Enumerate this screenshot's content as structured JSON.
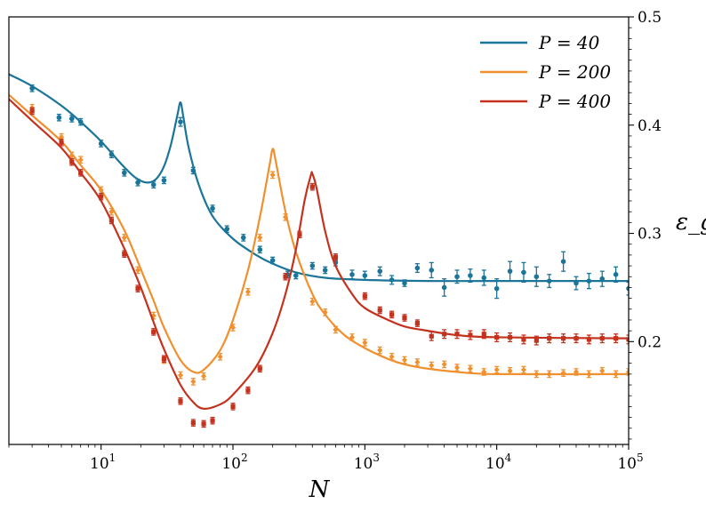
{
  "chart_data": {
    "type": "line",
    "xscale": "log",
    "xlim": [
      2,
      100000
    ],
    "ylim": [
      0.105,
      0.5
    ],
    "xlabel": "N",
    "ylabel": "ε_g",
    "yaxis_side": "right",
    "legend_position": "top-right",
    "x_ticks": [
      {
        "value": 10,
        "base": "10",
        "exp": "1"
      },
      {
        "value": 100,
        "base": "10",
        "exp": "2"
      },
      {
        "value": 1000,
        "base": "10",
        "exp": "3"
      },
      {
        "value": 10000,
        "base": "10",
        "exp": "4"
      },
      {
        "value": 100000,
        "base": "10",
        "exp": "5"
      }
    ],
    "y_ticks": [
      {
        "value": 0.2,
        "label": "0.2"
      },
      {
        "value": 0.3,
        "label": "0.3"
      },
      {
        "value": 0.4,
        "label": "0.4"
      },
      {
        "value": 0.5,
        "label": "0.5"
      }
    ],
    "series": [
      {
        "name": "P = 40",
        "color": "#1a7599",
        "marker": "circle",
        "curve": [
          [
            2,
            0.447
          ],
          [
            3,
            0.436
          ],
          [
            5,
            0.418
          ],
          [
            7,
            0.403
          ],
          [
            10,
            0.385
          ],
          [
            14,
            0.365
          ],
          [
            18,
            0.352
          ],
          [
            22,
            0.347
          ],
          [
            26,
            0.35
          ],
          [
            30,
            0.362
          ],
          [
            34,
            0.383
          ],
          [
            38,
            0.41
          ],
          [
            40,
            0.421
          ],
          [
            42,
            0.408
          ],
          [
            46,
            0.38
          ],
          [
            55,
            0.345
          ],
          [
            70,
            0.316
          ],
          [
            100,
            0.295
          ],
          [
            150,
            0.28
          ],
          [
            200,
            0.272
          ],
          [
            300,
            0.264
          ],
          [
            500,
            0.259
          ],
          [
            1000,
            0.257
          ],
          [
            3000,
            0.256
          ],
          [
            10000,
            0.256
          ],
          [
            100000,
            0.256
          ]
        ],
        "points": [
          [
            3,
            0.434,
            0.003
          ],
          [
            4.8,
            0.407,
            0.003
          ],
          [
            6,
            0.406,
            0.003
          ],
          [
            7,
            0.403,
            0.003
          ],
          [
            10,
            0.383,
            0.003
          ],
          [
            12,
            0.373,
            0.003
          ],
          [
            15,
            0.356,
            0.003
          ],
          [
            19,
            0.347,
            0.003
          ],
          [
            25,
            0.345,
            0.003
          ],
          [
            30,
            0.349,
            0.003
          ],
          [
            40,
            0.403,
            0.004
          ],
          [
            50,
            0.358,
            0.003
          ],
          [
            70,
            0.323,
            0.003
          ],
          [
            90,
            0.304,
            0.003
          ],
          [
            120,
            0.296,
            0.003
          ],
          [
            160,
            0.285,
            0.003
          ],
          [
            200,
            0.275,
            0.003
          ],
          [
            260,
            0.262,
            0.003
          ],
          [
            300,
            0.261,
            0.003
          ],
          [
            400,
            0.27,
            0.003
          ],
          [
            500,
            0.266,
            0.003
          ],
          [
            600,
            0.273,
            0.003
          ],
          [
            800,
            0.262,
            0.004
          ],
          [
            1000,
            0.261,
            0.004
          ],
          [
            1300,
            0.265,
            0.004
          ],
          [
            1600,
            0.257,
            0.004
          ],
          [
            2000,
            0.254,
            0.003
          ],
          [
            2500,
            0.268,
            0.004
          ],
          [
            3200,
            0.266,
            0.007
          ],
          [
            4000,
            0.25,
            0.008
          ],
          [
            5000,
            0.26,
            0.006
          ],
          [
            6300,
            0.261,
            0.006
          ],
          [
            8000,
            0.259,
            0.007
          ],
          [
            10000,
            0.249,
            0.009
          ],
          [
            12600,
            0.265,
            0.009
          ],
          [
            16000,
            0.264,
            0.009
          ],
          [
            20000,
            0.26,
            0.009
          ],
          [
            25000,
            0.256,
            0.006
          ],
          [
            32000,
            0.274,
            0.009
          ],
          [
            40000,
            0.254,
            0.006
          ],
          [
            50000,
            0.256,
            0.007
          ],
          [
            63000,
            0.258,
            0.007
          ],
          [
            80000,
            0.262,
            0.007
          ],
          [
            100000,
            0.249,
            0.006
          ]
        ]
      },
      {
        "name": "P = 200",
        "color": "#f0902e",
        "marker": "diamond",
        "curve": [
          [
            2,
            0.428
          ],
          [
            3,
            0.409
          ],
          [
            5,
            0.385
          ],
          [
            7,
            0.363
          ],
          [
            10,
            0.34
          ],
          [
            15,
            0.303
          ],
          [
            20,
            0.267
          ],
          [
            25,
            0.238
          ],
          [
            30,
            0.213
          ],
          [
            40,
            0.183
          ],
          [
            50,
            0.172
          ],
          [
            60,
            0.174
          ],
          [
            80,
            0.192
          ],
          [
            100,
            0.22
          ],
          [
            130,
            0.266
          ],
          [
            160,
            0.315
          ],
          [
            190,
            0.364
          ],
          [
            200,
            0.378
          ],
          [
            210,
            0.368
          ],
          [
            250,
            0.32
          ],
          [
            300,
            0.283
          ],
          [
            400,
            0.244
          ],
          [
            500,
            0.225
          ],
          [
            700,
            0.206
          ],
          [
            1000,
            0.194
          ],
          [
            1500,
            0.184
          ],
          [
            2000,
            0.179
          ],
          [
            3000,
            0.175
          ],
          [
            5000,
            0.172
          ],
          [
            10000,
            0.17
          ],
          [
            100000,
            0.17
          ]
        ],
        "points": [
          [
            3,
            0.416,
            0.003
          ],
          [
            5,
            0.389,
            0.003
          ],
          [
            6,
            0.372,
            0.003
          ],
          [
            7,
            0.368,
            0.003
          ],
          [
            10,
            0.34,
            0.003
          ],
          [
            12,
            0.32,
            0.003
          ],
          [
            15,
            0.296,
            0.003
          ],
          [
            19,
            0.266,
            0.003
          ],
          [
            25,
            0.224,
            0.003
          ],
          [
            30,
            0.183,
            0.003
          ],
          [
            40,
            0.169,
            0.003
          ],
          [
            50,
            0.163,
            0.003
          ],
          [
            60,
            0.168,
            0.003
          ],
          [
            80,
            0.186,
            0.003
          ],
          [
            100,
            0.213,
            0.003
          ],
          [
            130,
            0.246,
            0.003
          ],
          [
            160,
            0.296,
            0.003
          ],
          [
            200,
            0.354,
            0.003
          ],
          [
            250,
            0.315,
            0.003
          ],
          [
            400,
            0.237,
            0.003
          ],
          [
            500,
            0.227,
            0.003
          ],
          [
            600,
            0.211,
            0.003
          ],
          [
            800,
            0.204,
            0.003
          ],
          [
            1000,
            0.199,
            0.003
          ],
          [
            1300,
            0.192,
            0.003
          ],
          [
            1600,
            0.186,
            0.003
          ],
          [
            2000,
            0.183,
            0.003
          ],
          [
            2500,
            0.181,
            0.003
          ],
          [
            3200,
            0.178,
            0.003
          ],
          [
            4000,
            0.179,
            0.003
          ],
          [
            5000,
            0.176,
            0.003
          ],
          [
            6300,
            0.175,
            0.003
          ],
          [
            8000,
            0.172,
            0.003
          ],
          [
            10000,
            0.174,
            0.003
          ],
          [
            12600,
            0.173,
            0.003
          ],
          [
            16000,
            0.174,
            0.003
          ],
          [
            20000,
            0.17,
            0.003
          ],
          [
            25000,
            0.17,
            0.003
          ],
          [
            32000,
            0.171,
            0.003
          ],
          [
            40000,
            0.172,
            0.003
          ],
          [
            50000,
            0.17,
            0.003
          ],
          [
            63000,
            0.173,
            0.003
          ],
          [
            80000,
            0.17,
            0.003
          ],
          [
            100000,
            0.172,
            0.003
          ]
        ]
      },
      {
        "name": "P = 400",
        "color": "#c4321e",
        "marker": "square",
        "curve": [
          [
            2,
            0.424
          ],
          [
            3,
            0.404
          ],
          [
            5,
            0.379
          ],
          [
            7,
            0.356
          ],
          [
            10,
            0.33
          ],
          [
            15,
            0.286
          ],
          [
            20,
            0.25
          ],
          [
            25,
            0.218
          ],
          [
            30,
            0.193
          ],
          [
            40,
            0.16
          ],
          [
            50,
            0.144
          ],
          [
            60,
            0.138
          ],
          [
            80,
            0.142
          ],
          [
            100,
            0.151
          ],
          [
            150,
            0.177
          ],
          [
            200,
            0.208
          ],
          [
            250,
            0.244
          ],
          [
            300,
            0.285
          ],
          [
            350,
            0.331
          ],
          [
            390,
            0.354
          ],
          [
            400,
            0.355
          ],
          [
            430,
            0.342
          ],
          [
            500,
            0.302
          ],
          [
            600,
            0.27
          ],
          [
            800,
            0.244
          ],
          [
            1000,
            0.231
          ],
          [
            1500,
            0.22
          ],
          [
            2000,
            0.214
          ],
          [
            3000,
            0.21
          ],
          [
            5000,
            0.206
          ],
          [
            10000,
            0.204
          ],
          [
            100000,
            0.203
          ]
        ],
        "points": [
          [
            3,
            0.413,
            0.003
          ],
          [
            5,
            0.384,
            0.003
          ],
          [
            6,
            0.366,
            0.003
          ],
          [
            7,
            0.356,
            0.003
          ],
          [
            10,
            0.334,
            0.003
          ],
          [
            12,
            0.312,
            0.003
          ],
          [
            15,
            0.281,
            0.003
          ],
          [
            19,
            0.249,
            0.003
          ],
          [
            25,
            0.209,
            0.003
          ],
          [
            30,
            0.184,
            0.003
          ],
          [
            40,
            0.145,
            0.003
          ],
          [
            50,
            0.125,
            0.003
          ],
          [
            60,
            0.124,
            0.003
          ],
          [
            70,
            0.127,
            0.003
          ],
          [
            100,
            0.14,
            0.003
          ],
          [
            130,
            0.155,
            0.003
          ],
          [
            160,
            0.175,
            0.003
          ],
          [
            250,
            0.26,
            0.003
          ],
          [
            320,
            0.299,
            0.003
          ],
          [
            400,
            0.343,
            0.003
          ],
          [
            600,
            0.278,
            0.003
          ],
          [
            1000,
            0.242,
            0.003
          ],
          [
            1300,
            0.229,
            0.003
          ],
          [
            1600,
            0.225,
            0.003
          ],
          [
            2000,
            0.222,
            0.003
          ],
          [
            2500,
            0.217,
            0.003
          ],
          [
            3200,
            0.205,
            0.004
          ],
          [
            4000,
            0.207,
            0.004
          ],
          [
            5000,
            0.207,
            0.004
          ],
          [
            6300,
            0.206,
            0.004
          ],
          [
            8000,
            0.207,
            0.004
          ],
          [
            10000,
            0.204,
            0.004
          ],
          [
            12600,
            0.204,
            0.004
          ],
          [
            16000,
            0.202,
            0.004
          ],
          [
            20000,
            0.201,
            0.004
          ],
          [
            25000,
            0.203,
            0.004
          ],
          [
            32000,
            0.203,
            0.004
          ],
          [
            40000,
            0.203,
            0.004
          ],
          [
            50000,
            0.202,
            0.004
          ],
          [
            63000,
            0.203,
            0.004
          ],
          [
            80000,
            0.203,
            0.004
          ],
          [
            100000,
            0.202,
            0.004
          ]
        ]
      }
    ]
  }
}
